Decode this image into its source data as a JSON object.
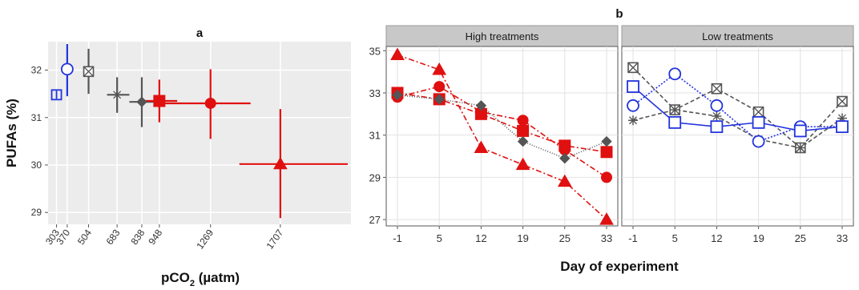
{
  "chart_data": [
    {
      "type": "scatter",
      "panel_letter": "a",
      "xlabel": "pCO",
      "xlabel_sub": "2",
      "xlabel_unit": " (µatm)",
      "ylabel": "PUFAs (%)",
      "x_ticks": [
        "303",
        "370",
        "504",
        "683",
        "838",
        "948",
        "1269",
        "1707"
      ],
      "y_ticks": [
        29,
        30,
        31,
        32
      ],
      "ylim": [
        28.75,
        32.6
      ],
      "grid": true,
      "points": [
        {
          "x": 303,
          "y": 31.48,
          "x_lo": 303,
          "x_hi": 303,
          "y_lo": 31.48,
          "y_hi": 31.48,
          "marker": "square",
          "color": "#2233dd"
        },
        {
          "x": 370,
          "y": 32.02,
          "x_lo": 370,
          "x_hi": 370,
          "y_lo": 31.45,
          "y_hi": 32.55,
          "marker": "circle-open",
          "color": "#2233dd"
        },
        {
          "x": 504,
          "y": 31.97,
          "x_lo": 504,
          "x_hi": 504,
          "y_lo": 31.5,
          "y_hi": 32.45,
          "marker": "square-x",
          "color": "#555555"
        },
        {
          "x": 683,
          "y": 31.48,
          "x_lo": 620,
          "x_hi": 760,
          "y_lo": 31.1,
          "y_hi": 31.85,
          "marker": "asterisk",
          "color": "#555555"
        },
        {
          "x": 838,
          "y": 31.33,
          "x_lo": 760,
          "x_hi": 930,
          "y_lo": 30.8,
          "y_hi": 31.85,
          "marker": "diamond-filled",
          "color": "#555555"
        },
        {
          "x": 948,
          "y": 31.35,
          "x_lo": 860,
          "x_hi": 1060,
          "y_lo": 30.9,
          "y_hi": 31.8,
          "marker": "square-filled",
          "color": "#e01010"
        },
        {
          "x": 1269,
          "y": 31.3,
          "x_lo": 980,
          "x_hi": 1520,
          "y_lo": 30.55,
          "y_hi": 32.02,
          "marker": "circle-filled",
          "color": "#e01010"
        },
        {
          "x": 1707,
          "y": 30.02,
          "x_lo": 1450,
          "x_hi": 2130,
          "y_lo": 28.88,
          "y_hi": 31.18,
          "marker": "triangle-filled",
          "color": "#e01010"
        }
      ]
    },
    {
      "type": "line",
      "panel_letter": "b",
      "xlabel": "Day of experiment",
      "x_ticks": [
        "-1",
        "5",
        "12",
        "19",
        "25",
        "33"
      ],
      "y_ticks": [
        27,
        29,
        31,
        33,
        35
      ],
      "ylim": [
        26.7,
        35.2
      ],
      "grid": true,
      "facets": [
        {
          "strip": "High treatments",
          "series": [
            {
              "marker": "triangle-filled",
              "color": "#e01010",
              "dash": "7,3,2,3",
              "values": [
                34.8,
                34.1,
                30.4,
                29.6,
                28.8,
                27.0
              ]
            },
            {
              "marker": "square-filled",
              "color": "#e01010",
              "dash": "7,3,2,3",
              "values": [
                33.0,
                32.7,
                32.0,
                31.2,
                30.5,
                30.2
              ]
            },
            {
              "marker": "circle-filled",
              "color": "#e01010",
              "dash": "7,3,2,3",
              "values": [
                32.8,
                33.3,
                32.1,
                31.7,
                30.3,
                29.0
              ]
            },
            {
              "marker": "diamond-filled",
              "color": "#555555",
              "dash": "1,2",
              "values": [
                32.9,
                32.7,
                32.4,
                30.7,
                29.9,
                30.7
              ]
            }
          ]
        },
        {
          "strip": "Low treatments",
          "series": [
            {
              "marker": "square-x",
              "color": "#555555",
              "dash": "5,3",
              "values": [
                34.2,
                32.2,
                33.2,
                32.1,
                30.4,
                32.6
              ]
            },
            {
              "marker": "asterisk",
              "color": "#555555",
              "dash": "5,3",
              "values": [
                31.7,
                32.2,
                31.9,
                30.8,
                30.4,
                31.8
              ]
            },
            {
              "marker": "circle-open",
              "color": "#2233dd",
              "dash": "2,2",
              "values": [
                32.4,
                33.9,
                32.4,
                30.7,
                31.4,
                31.4
              ]
            },
            {
              "marker": "square-open",
              "color": "#2233dd",
              "dash": "",
              "values": [
                33.3,
                31.6,
                31.4,
                31.6,
                31.2,
                31.4
              ]
            }
          ]
        }
      ]
    }
  ]
}
